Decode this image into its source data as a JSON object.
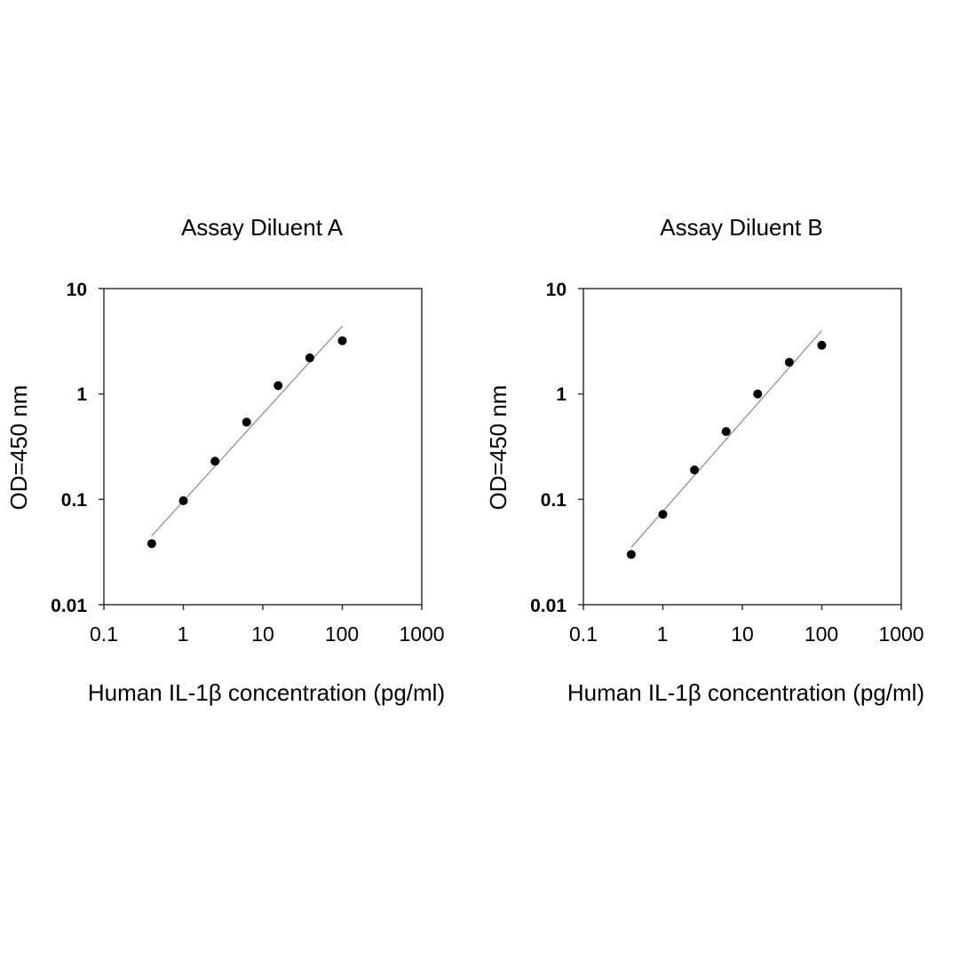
{
  "chart_data": [
    {
      "type": "scatter",
      "title": "Assay Diluent A",
      "xlabel": "Human IL-1β  concentration (pg/ml)",
      "ylabel": "OD=450 nm",
      "xscale": "log",
      "yscale": "log",
      "xlim": [
        0.1,
        1000
      ],
      "ylim": [
        0.01,
        10
      ],
      "x_ticks": [
        "0.1",
        "1",
        "10",
        "100",
        "1000"
      ],
      "y_ticks": [
        "10",
        "1",
        "0.1",
        "0.01"
      ],
      "grid": false,
      "series": [
        {
          "x": [
            0.4,
            1,
            2.5,
            6.25,
            15.6,
            39,
            100
          ],
          "y": [
            0.038,
            0.097,
            0.23,
            0.54,
            1.2,
            2.2,
            3.2
          ]
        }
      ],
      "fit_line": {
        "x": [
          0.4,
          100
        ],
        "y": [
          0.045,
          4.4
        ]
      }
    },
    {
      "type": "scatter",
      "title": "Assay Diluent B",
      "xlabel": "Human IL-1β  concentration (pg/ml)",
      "ylabel": "OD=450 nm",
      "xscale": "log",
      "yscale": "log",
      "xlim": [
        0.1,
        1000
      ],
      "ylim": [
        0.01,
        10
      ],
      "x_ticks": [
        "0.1",
        "1",
        "10",
        "100",
        "1000"
      ],
      "y_ticks": [
        "10",
        "1",
        "0.1",
        "0.01"
      ],
      "grid": false,
      "series": [
        {
          "x": [
            0.4,
            1,
            2.5,
            6.25,
            15.6,
            39,
            100
          ],
          "y": [
            0.03,
            0.072,
            0.19,
            0.44,
            1.0,
            2.0,
            2.9
          ]
        }
      ],
      "fit_line": {
        "x": [
          0.4,
          100
        ],
        "y": [
          0.035,
          4.0
        ]
      }
    }
  ]
}
